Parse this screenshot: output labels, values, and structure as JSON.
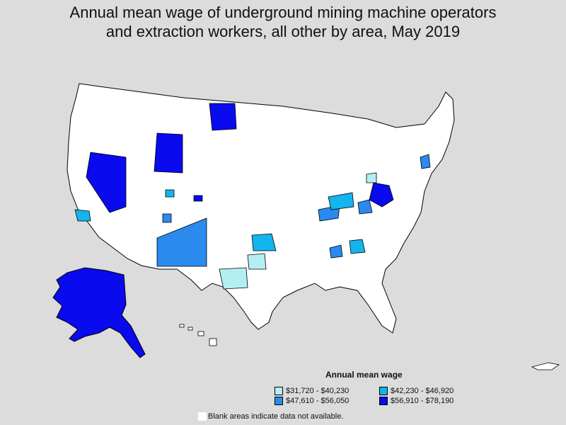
{
  "title_line1": "Annual mean wage of underground mining machine operators",
  "title_line2": "and extraction workers, all other by area, May 2019",
  "legend": {
    "title": "Annual mean wage",
    "items": [
      {
        "label": "$31,720 - $40,230",
        "color": "#b3eef2"
      },
      {
        "label": "$42,230 - $46,920",
        "color": "#14b4ee"
      },
      {
        "label": "$47,610 - $56,050",
        "color": "#2a8aee"
      },
      {
        "label": "$56,910 - $78,190",
        "color": "#0a0aee"
      }
    ]
  },
  "note": "Blank areas indicate data not available.",
  "colors": {
    "background": "#dcdcdc",
    "land": "#ffffff",
    "border": "#000000"
  }
}
